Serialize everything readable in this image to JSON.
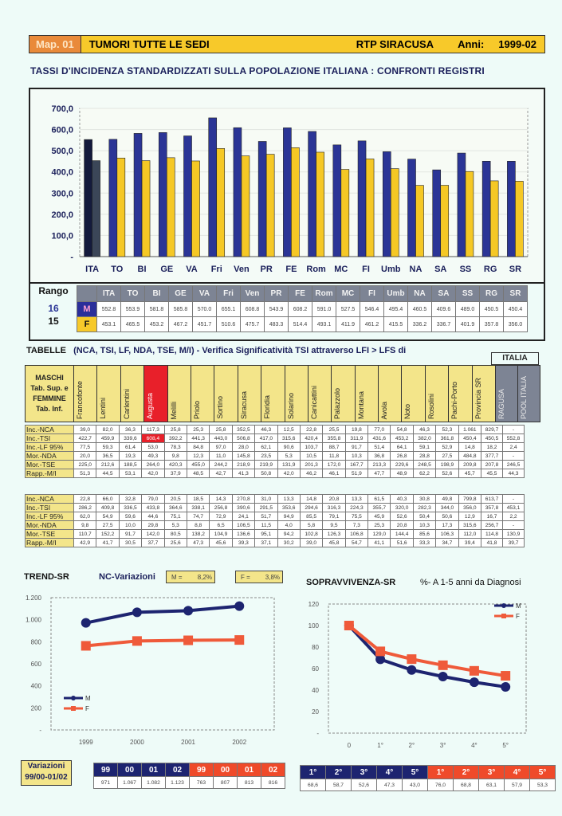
{
  "header": {
    "map_label": "Map. 01",
    "title": "TUMORI TUTTE LE SEDI",
    "registry": "RTP SIRACUSA",
    "years_label": "Anni:",
    "years_value": "1999-02"
  },
  "subtitle": "TASSI D'INCIDENZA STANDARDIZZATI SULLA POPOLAZIONE ITALIANA : CONFRONTI REGISTRI",
  "rango": {
    "label": "Rango",
    "m_rank": "16",
    "f_rank": "15",
    "m_label": "M",
    "f_label": "F"
  },
  "chart_data": [
    {
      "type": "bar",
      "title": "TASSI D'INCIDENZA STANDARDIZZATI SULLA POPOLAZIONE ITALIANA : CONFRONTI REGISTRI",
      "categories": [
        "ITA",
        "TO",
        "BI",
        "GE",
        "VA",
        "Fri",
        "Ven",
        "PR",
        "FE",
        "Rom",
        "MC",
        "FI",
        "Umb",
        "NA",
        "SA",
        "SS",
        "RG",
        "SR"
      ],
      "series": [
        {
          "name": "M",
          "color": "#2b3596",
          "values": [
            "552.8",
            "553.9",
            "581.8",
            "585.8",
            "570.0",
            "655.1",
            "608.8",
            "543.9",
            "608.2",
            "591.0",
            "527.5",
            "546.4",
            "495.4",
            "460.5",
            "409.6",
            "489.0",
            "450.5",
            "450.4"
          ]
        },
        {
          "name": "F",
          "color": "#f5c825",
          "values": [
            "453.1",
            "465.5",
            "453.2",
            "467.2",
            "451.7",
            "510.6",
            "475.7",
            "483.3",
            "514.4",
            "493.1",
            "411.9",
            "461.2",
            "415.5",
            "336.2",
            "336.7",
            "401.9",
            "357.8",
            "356.0"
          ]
        }
      ],
      "yticks": [
        "-",
        "100,0",
        "200,0",
        "300,0",
        "400,0",
        "500,0",
        "600,0",
        "700,0"
      ],
      "ylim": [
        0,
        700
      ],
      "grid": true
    },
    {
      "type": "line",
      "title": "TREND-SR",
      "x": [
        "1999",
        "2000",
        "2001",
        "2002"
      ],
      "series": [
        {
          "name": "M",
          "color": "#1d2470",
          "values": [
            971,
            1067,
            1082,
            1123
          ]
        },
        {
          "name": "F",
          "color": "#ef5a3a",
          "values": [
            763,
            807,
            813,
            816
          ]
        }
      ],
      "yticks": [
        "-",
        "200",
        "400",
        "600",
        "800",
        "1.000",
        "1.200"
      ],
      "ylim": [
        0,
        1200
      ],
      "legend": "bottom-left"
    },
    {
      "type": "line",
      "title": "SOPRAVVIVENZA-SR",
      "subtitle": "%- A 1-5 anni da Diagnosi",
      "x": [
        "0",
        "1°",
        "2°",
        "3°",
        "4°",
        "5°"
      ],
      "series": [
        {
          "name": "M",
          "color": "#1d2470",
          "values": [
            100,
            68.6,
            58.7,
            52.6,
            47.3,
            43.0
          ]
        },
        {
          "name": "F",
          "color": "#ef5a3a",
          "values": [
            100,
            76.0,
            68.8,
            63.1,
            57.9,
            53.3
          ]
        }
      ],
      "yticks": [
        "-",
        "20",
        "40",
        "60",
        "80",
        "100",
        "120"
      ],
      "ylim": [
        0,
        120
      ],
      "legend": "top-right"
    }
  ],
  "tables": {
    "title": "TABELLE",
    "title_rest": "(NCA, TSI, LF, NDA, TSE, M/I) - Verifica Significatività TSI attraverso LFI > LFS di",
    "reference": "ITALIA",
    "corner": [
      "MASCHI",
      "Tab. Sup. e",
      "FEMMINE",
      "Tab. Inf."
    ],
    "columns": [
      "Francofonte",
      "Lentini",
      "Carlentini",
      "Augusta",
      "Melilli",
      "Priolo",
      "Sortino",
      "Siracusa",
      "Floridia",
      "Solarino",
      "Canicattini",
      "Palazzolo",
      "Montana",
      "Avola",
      "Noto",
      "Rosolini",
      "Pachi-Porto",
      "Provincia SR",
      "RAGUSA",
      "POOL ITALIA"
    ],
    "males": [
      {
        "label": "Inc.-NCA",
        "values": [
          "39,0",
          "82,0",
          "36,3",
          "117,3",
          "25,8",
          "25,3",
          "25,8",
          "352,5",
          "46,3",
          "12,5",
          "22,8",
          "25,5",
          "19,8",
          "77,0",
          "54,8",
          "46,3",
          "52,3",
          "1.061",
          "829,7",
          "-"
        ]
      },
      {
        "label": "Inc.-TSI",
        "values": [
          "422,7",
          "459,9",
          "339,6",
          "608,4",
          "392,2",
          "441,3",
          "443,0",
          "506,8",
          "417,0",
          "315,6",
          "420,4",
          "355,8",
          "311,9",
          "431,6",
          "453,2",
          "382,0",
          "361,8",
          "450,4",
          "450,5",
          "552,8"
        ]
      },
      {
        "label": "Inc.-LF 95%",
        "values": [
          "77,5",
          "59,3",
          "61,4",
          "53,0",
          "78,3",
          "84,8",
          "97,0",
          "28,0",
          "62,1",
          "90,6",
          "103,7",
          "88,7",
          "91,7",
          "51,4",
          "64,1",
          "59,1",
          "52,9",
          "14,8",
          "18,2",
          "2,4"
        ]
      },
      {
        "label": "Mor.-NDA",
        "values": [
          "20,0",
          "36,5",
          "19,3",
          "49,3",
          "9,8",
          "12,3",
          "11,0",
          "145,8",
          "23,5",
          "5,3",
          "10,5",
          "11,8",
          "10,3",
          "36,8",
          "26,8",
          "28,8",
          "27,5",
          "484,8",
          "377,7",
          "-"
        ]
      },
      {
        "label": "Mor.-TSE",
        "values": [
          "225,0",
          "212,6",
          "188,5",
          "264,0",
          "420,3",
          "455,0",
          "244,2",
          "218,9",
          "219,9",
          "131,9",
          "201,3",
          "172,0",
          "167,7",
          "213,3",
          "229,6",
          "248,5",
          "198,9",
          "209,8",
          "207,8",
          "246,5"
        ]
      },
      {
        "label": "Rapp.-M/I",
        "values": [
          "51,3",
          "44,5",
          "53,1",
          "42,0",
          "37,9",
          "48,5",
          "42,7",
          "41,3",
          "50,8",
          "42,0",
          "46,2",
          "46,1",
          "51,9",
          "47,7",
          "48,9",
          "62,2",
          "52,6",
          "45,7",
          "45,5",
          "44,3"
        ]
      }
    ],
    "females": [
      {
        "label": "Inc.-NCA",
        "values": [
          "22,8",
          "66,0",
          "32,8",
          "79,0",
          "20,5",
          "18,5",
          "14,3",
          "270,8",
          "31,0",
          "13,3",
          "14,8",
          "20,8",
          "13,3",
          "61,5",
          "40,3",
          "30,8",
          "49,8",
          "799,8",
          "613,7",
          "-"
        ]
      },
      {
        "label": "Inc.-TSI",
        "values": [
          "286,2",
          "409,8",
          "336,5",
          "433,8",
          "364,6",
          "338,1",
          "256,8",
          "390,6",
          "291,5",
          "353,6",
          "294,6",
          "316,3",
          "224,3",
          "355,7",
          "320,0",
          "282,3",
          "344,0",
          "356,0",
          "357,8",
          "453,1"
        ]
      },
      {
        "label": "Inc.-LF 95%",
        "values": [
          "62,0",
          "54,9",
          "59,6",
          "44,6",
          "75,1",
          "74,7",
          "72,9",
          "24,1",
          "51,7",
          "94,9",
          "85,5",
          "79,1",
          "75,5",
          "45,9",
          "52,6",
          "50,4",
          "50,6",
          "12,9",
          "16,7",
          "2,2"
        ]
      },
      {
        "label": "Mor.-NDA",
        "values": [
          "9,8",
          "27,5",
          "10,0",
          "29,8",
          "5,3",
          "8,8",
          "6,5",
          "106,5",
          "11,5",
          "4,0",
          "5,8",
          "9,5",
          "7,3",
          "25,3",
          "20,8",
          "10,3",
          "17,3",
          "315,6",
          "256,7",
          "-"
        ]
      },
      {
        "label": "Mor.-TSE",
        "values": [
          "110,7",
          "152,2",
          "91,7",
          "142,0",
          "80,5",
          "138,2",
          "104,9",
          "136,6",
          "95,1",
          "94,2",
          "102,8",
          "126,3",
          "106,8",
          "129,0",
          "144,4",
          "85,6",
          "106,3",
          "112,0",
          "114,8",
          "130,9"
        ]
      },
      {
        "label": "Rapp.-M/I",
        "values": [
          "42,9",
          "41,7",
          "30,5",
          "37,7",
          "25,6",
          "47,3",
          "45,6",
          "39,3",
          "37,1",
          "30,2",
          "39,0",
          "45,8",
          "54,7",
          "41,1",
          "51,6",
          "33,3",
          "34,7",
          "39,4",
          "41,8",
          "39,7"
        ]
      }
    ]
  },
  "trend": {
    "title": "TREND-SR",
    "nc_label": "NC-Variazioni",
    "m_label": "M =",
    "m_value": "8,2%",
    "f_label": "F =",
    "f_value": "3,8%"
  },
  "survival": {
    "title": "SOPRAVVIVENZA-SR",
    "subtitle": "%- A 1-5 anni da Diagnosi"
  },
  "variazioni": {
    "label_line1": "Variazioni",
    "label_line2": "99/00-01/02",
    "m_headers": [
      "99",
      "00",
      "01",
      "02"
    ],
    "m_values": [
      "971",
      "1.067",
      "1.082",
      "1.123"
    ],
    "f_headers": [
      "99",
      "00",
      "01",
      "02"
    ],
    "f_values": [
      "763",
      "807",
      "813",
      "816"
    ]
  },
  "survival_table": {
    "m_headers": [
      "1°",
      "2°",
      "3°",
      "4°",
      "5°"
    ],
    "m_values": [
      "68,6",
      "58,7",
      "52,6",
      "47,3",
      "43,0"
    ],
    "f_headers": [
      "1°",
      "2°",
      "3°",
      "4°",
      "5°"
    ],
    "f_values": [
      "76,0",
      "68,8",
      "63,1",
      "57,9",
      "53,3"
    ]
  }
}
